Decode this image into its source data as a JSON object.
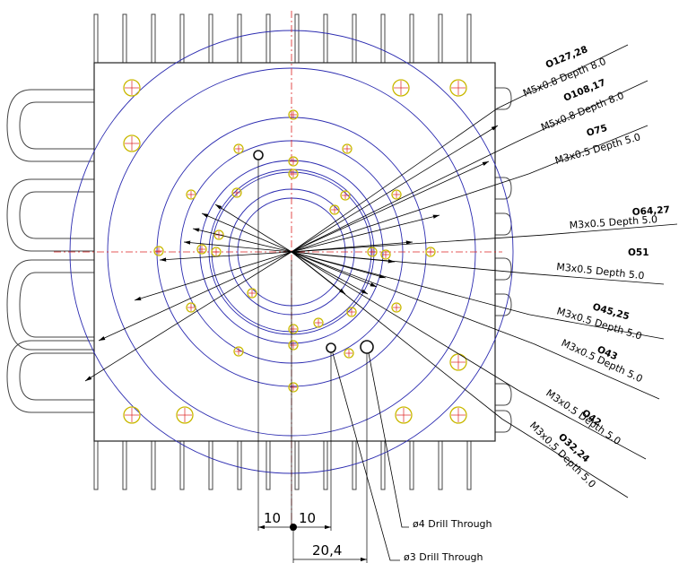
{
  "callouts": [
    {
      "diameter": "O127,28",
      "spec": "M5x0.8 Depth 8.0"
    },
    {
      "diameter": "O108,17",
      "spec": "M5x0.8 Depth 8.0"
    },
    {
      "diameter": "O75",
      "spec": "M3x0.5 Depth 5.0"
    },
    {
      "diameter": "O64,27",
      "spec": "M3x0.5 Depth 5.0"
    },
    {
      "diameter": "O51",
      "spec": "M3x0.5 Depth 5.0"
    },
    {
      "diameter": "O45,25",
      "spec": "M3x0.5 Depth 5.0"
    },
    {
      "diameter": "O43",
      "spec": "M3x0.5 Depth 5.0"
    },
    {
      "diameter": "O42",
      "spec": "M3x0.5 Depth 5.0"
    },
    {
      "diameter": "O32,24",
      "spec": "M3x0.5 Depth 5.0"
    }
  ],
  "dimensions": [
    "10",
    "10",
    "20,4"
  ],
  "notes": [
    "ø4 Drill Through",
    "ø3 Drill Through"
  ]
}
